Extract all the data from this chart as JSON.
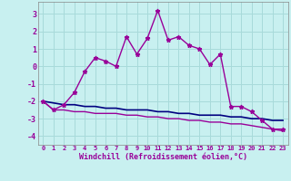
{
  "xlabel": "Windchill (Refroidissement éolien,°C)",
  "background_color": "#c8f0f0",
  "grid_color": "#a8dada",
  "line_color": "#990099",
  "dark_line_color": "#000080",
  "hours": [
    0,
    1,
    2,
    3,
    4,
    5,
    6,
    7,
    8,
    9,
    10,
    11,
    12,
    13,
    14,
    15,
    16,
    17,
    18,
    19,
    20,
    21,
    22,
    23
  ],
  "windchill": [
    -2.0,
    -2.5,
    -2.2,
    -1.5,
    -0.3,
    0.5,
    0.3,
    0.0,
    1.7,
    0.7,
    1.6,
    3.2,
    1.5,
    1.7,
    1.2,
    1.0,
    0.1,
    0.7,
    -2.3,
    -2.3,
    -2.6,
    -3.1,
    -3.6,
    -3.6
  ],
  "temp": [
    -2.0,
    -2.1,
    -2.2,
    -2.2,
    -2.3,
    -2.3,
    -2.4,
    -2.4,
    -2.5,
    -2.5,
    -2.5,
    -2.6,
    -2.6,
    -2.7,
    -2.7,
    -2.8,
    -2.8,
    -2.8,
    -2.9,
    -2.9,
    -3.0,
    -3.0,
    -3.1,
    -3.1
  ],
  "feels_like": [
    -2.0,
    -2.5,
    -2.5,
    -2.6,
    -2.6,
    -2.7,
    -2.7,
    -2.7,
    -2.8,
    -2.8,
    -2.9,
    -2.9,
    -3.0,
    -3.0,
    -3.1,
    -3.1,
    -3.2,
    -3.2,
    -3.3,
    -3.3,
    -3.4,
    -3.5,
    -3.6,
    -3.7
  ],
  "ylim": [
    -4.5,
    3.7
  ],
  "xlim": [
    -0.5,
    23.5
  ],
  "yticks": [
    -4,
    -3,
    -2,
    -1,
    0,
    1,
    2,
    3
  ],
  "xticks": [
    0,
    1,
    2,
    3,
    4,
    5,
    6,
    7,
    8,
    9,
    10,
    11,
    12,
    13,
    14,
    15,
    16,
    17,
    18,
    19,
    20,
    21,
    22,
    23
  ]
}
